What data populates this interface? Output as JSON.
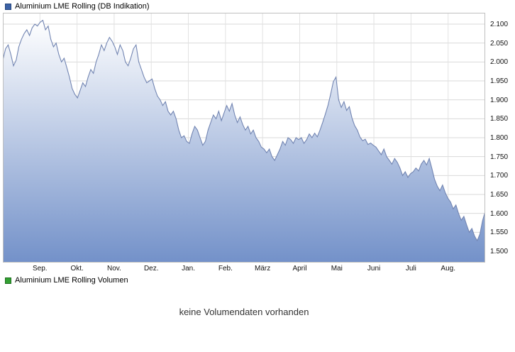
{
  "price_panel": {
    "legend": {
      "label": "Aluminium LME Rolling (DB Indikation)",
      "swatch_color": "#3c62a6",
      "swatch_icon": "series-swatch-blue"
    }
  },
  "volume_panel": {
    "legend": {
      "label": "Aluminium LME Rolling Volumen",
      "swatch_color": "#33a033",
      "swatch_icon": "series-swatch-green"
    },
    "message": "keine Volumendaten vorhanden"
  },
  "chart_data": {
    "type": "area",
    "title": "Aluminium LME Rolling (DB Indikation)",
    "legend_position": "top-left",
    "grid": true,
    "x_tick_labels": [
      "Sep.",
      "Okt.",
      "Nov.",
      "Dez.",
      "Jan.",
      "Feb.",
      "März",
      "April",
      "Mai",
      "Juni",
      "Juli",
      "Aug."
    ],
    "y_ticks": [
      {
        "value": 2100,
        "label": "2.100"
      },
      {
        "value": 2050,
        "label": "2.050"
      },
      {
        "value": 2000,
        "label": "2.000"
      },
      {
        "value": 1950,
        "label": "1.950"
      },
      {
        "value": 1900,
        "label": "1.900"
      },
      {
        "value": 1850,
        "label": "1.850"
      },
      {
        "value": 1800,
        "label": "1.800"
      },
      {
        "value": 1750,
        "label": "1.750"
      },
      {
        "value": 1700,
        "label": "1.700"
      },
      {
        "value": 1650,
        "label": "1.650"
      },
      {
        "value": 1600,
        "label": "1.600"
      },
      {
        "value": 1550,
        "label": "1.550"
      },
      {
        "value": 1500,
        "label": "1.500"
      }
    ],
    "ylim": [
      1470,
      2130
    ],
    "months_span": 13,
    "line_color": "#7285b2",
    "fill_gradient": [
      "#ffffff",
      "#7391c9"
    ],
    "grid_color_h": "#d9d9d9",
    "grid_color_v": "#e2e2e2",
    "frame_color": "#c0c0c0",
    "values": [
      2005,
      2035,
      2045,
      2020,
      1990,
      2005,
      2040,
      2060,
      2075,
      2085,
      2070,
      2090,
      2100,
      2095,
      2105,
      2110,
      2085,
      2095,
      2060,
      2040,
      2050,
      2020,
      2000,
      2010,
      1985,
      1960,
      1930,
      1915,
      1905,
      1925,
      1945,
      1935,
      1960,
      1980,
      1970,
      2000,
      2020,
      2045,
      2030,
      2050,
      2065,
      2055,
      2040,
      2020,
      2045,
      2030,
      2000,
      1990,
      2010,
      2035,
      2045,
      2000,
      1980,
      1960,
      1945,
      1950,
      1955,
      1930,
      1910,
      1900,
      1885,
      1895,
      1870,
      1860,
      1870,
      1850,
      1820,
      1800,
      1805,
      1790,
      1785,
      1810,
      1830,
      1820,
      1800,
      1780,
      1790,
      1820,
      1840,
      1860,
      1850,
      1870,
      1845,
      1865,
      1885,
      1870,
      1890,
      1860,
      1840,
      1855,
      1835,
      1820,
      1830,
      1810,
      1820,
      1800,
      1790,
      1775,
      1770,
      1760,
      1770,
      1750,
      1740,
      1755,
      1770,
      1790,
      1780,
      1800,
      1795,
      1785,
      1800,
      1795,
      1800,
      1785,
      1795,
      1810,
      1800,
      1812,
      1802,
      1820,
      1840,
      1862,
      1885,
      1915,
      1948,
      1960,
      1900,
      1880,
      1895,
      1872,
      1882,
      1852,
      1832,
      1820,
      1802,
      1792,
      1796,
      1782,
      1786,
      1780,
      1775,
      1765,
      1755,
      1770,
      1750,
      1740,
      1730,
      1745,
      1735,
      1720,
      1700,
      1710,
      1695,
      1705,
      1710,
      1720,
      1712,
      1730,
      1740,
      1728,
      1745,
      1718,
      1690,
      1672,
      1660,
      1675,
      1655,
      1640,
      1630,
      1612,
      1622,
      1600,
      1582,
      1592,
      1570,
      1550,
      1560,
      1540,
      1528,
      1545,
      1580,
      1605
    ]
  }
}
